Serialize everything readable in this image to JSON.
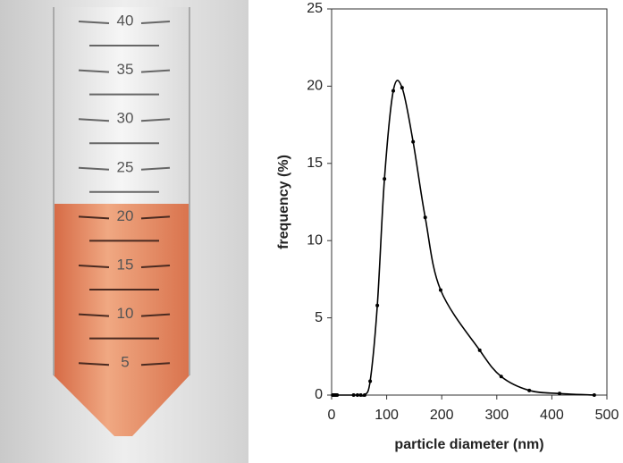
{
  "photo": {
    "graduations": [
      "40",
      "35",
      "30",
      "25",
      "20",
      "15",
      "10",
      "5"
    ]
  },
  "chart_data": {
    "type": "line",
    "x_label": "particle diameter (nm)",
    "y_label": "frequency (%)",
    "xlim": [
      0,
      500
    ],
    "ylim": [
      0,
      25
    ],
    "xticks": [
      0,
      100,
      200,
      300,
      400,
      500
    ],
    "yticks": [
      0,
      5,
      10,
      15,
      20,
      25
    ],
    "series": [
      {
        "color": "#000000",
        "x": [
          2,
          4,
          6,
          8,
          10,
          40,
          47,
          53,
          60,
          70,
          83,
          96,
          112,
          128,
          148,
          170,
          198,
          269,
          308,
          359,
          414,
          477
        ],
        "values": [
          0,
          0,
          0,
          0,
          0,
          0,
          0,
          0,
          0,
          0.9,
          5.8,
          14.0,
          19.7,
          19.9,
          16.4,
          11.5,
          6.8,
          2.9,
          1.2,
          0.3,
          0.1,
          0
        ]
      }
    ]
  }
}
